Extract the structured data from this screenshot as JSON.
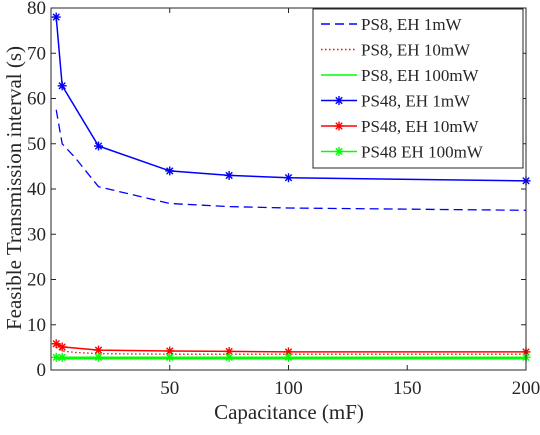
{
  "chart_data": {
    "type": "line",
    "title": "",
    "xlabel": "Capacitance (mF)",
    "ylabel": "Feasible Transmission interval (s)",
    "xlim": [
      0,
      200
    ],
    "ylim": [
      0,
      80
    ],
    "xticks": [
      50,
      100,
      150,
      200
    ],
    "yticks": [
      0,
      10,
      20,
      30,
      40,
      50,
      60,
      70,
      80
    ],
    "grid": false,
    "legend_position": "top-right",
    "series": [
      {
        "name": "PS8, EH 1mW",
        "color": "#0000ff",
        "line_style": "dashed",
        "marker": "none",
        "x": [
          2.2,
          4.7,
          10,
          20,
          50,
          75,
          100,
          200
        ],
        "y": [
          57.5,
          50.0,
          47.0,
          40.5,
          36.8,
          36.1,
          35.8,
          35.3
        ]
      },
      {
        "name": "PS8, EH 10mW",
        "color": "#ff0000",
        "line_style": "dotted",
        "marker": "none",
        "x": [
          2.2,
          4.7,
          10,
          20,
          50,
          75,
          100,
          200
        ],
        "y": [
          5.0,
          4.2,
          3.9,
          3.6,
          3.5,
          3.5,
          3.5,
          3.5
        ]
      },
      {
        "name": "PS8, EH 100mW",
        "color": "#00ff00",
        "line_style": "solid",
        "marker": "none",
        "x": [
          2.2,
          4.7,
          10,
          20,
          50,
          75,
          100,
          200
        ],
        "y": [
          2.5,
          2.5,
          2.5,
          2.5,
          2.5,
          2.5,
          2.5,
          2.5
        ]
      },
      {
        "name": "PS48, EH 1mW",
        "color": "#0000ff",
        "line_style": "solid",
        "marker": "star",
        "x": [
          2.2,
          4.7,
          20,
          50,
          75,
          100,
          200
        ],
        "y": [
          78.0,
          62.8,
          49.5,
          44.0,
          43.0,
          42.5,
          41.8
        ]
      },
      {
        "name": "PS48, EH 10mW",
        "color": "#ff0000",
        "line_style": "solid",
        "marker": "star",
        "x": [
          2.2,
          4.7,
          20,
          50,
          75,
          100,
          200
        ],
        "y": [
          5.8,
          5.1,
          4.4,
          4.2,
          4.1,
          4.0,
          4.0
        ]
      },
      {
        "name": "PS48 EH 100mW",
        "color": "#00ff00",
        "line_style": "solid",
        "marker": "star",
        "x": [
          2.2,
          4.7,
          20,
          50,
          75,
          100,
          200
        ],
        "y": [
          2.8,
          2.8,
          2.8,
          2.8,
          2.8,
          2.8,
          2.8
        ]
      }
    ]
  }
}
